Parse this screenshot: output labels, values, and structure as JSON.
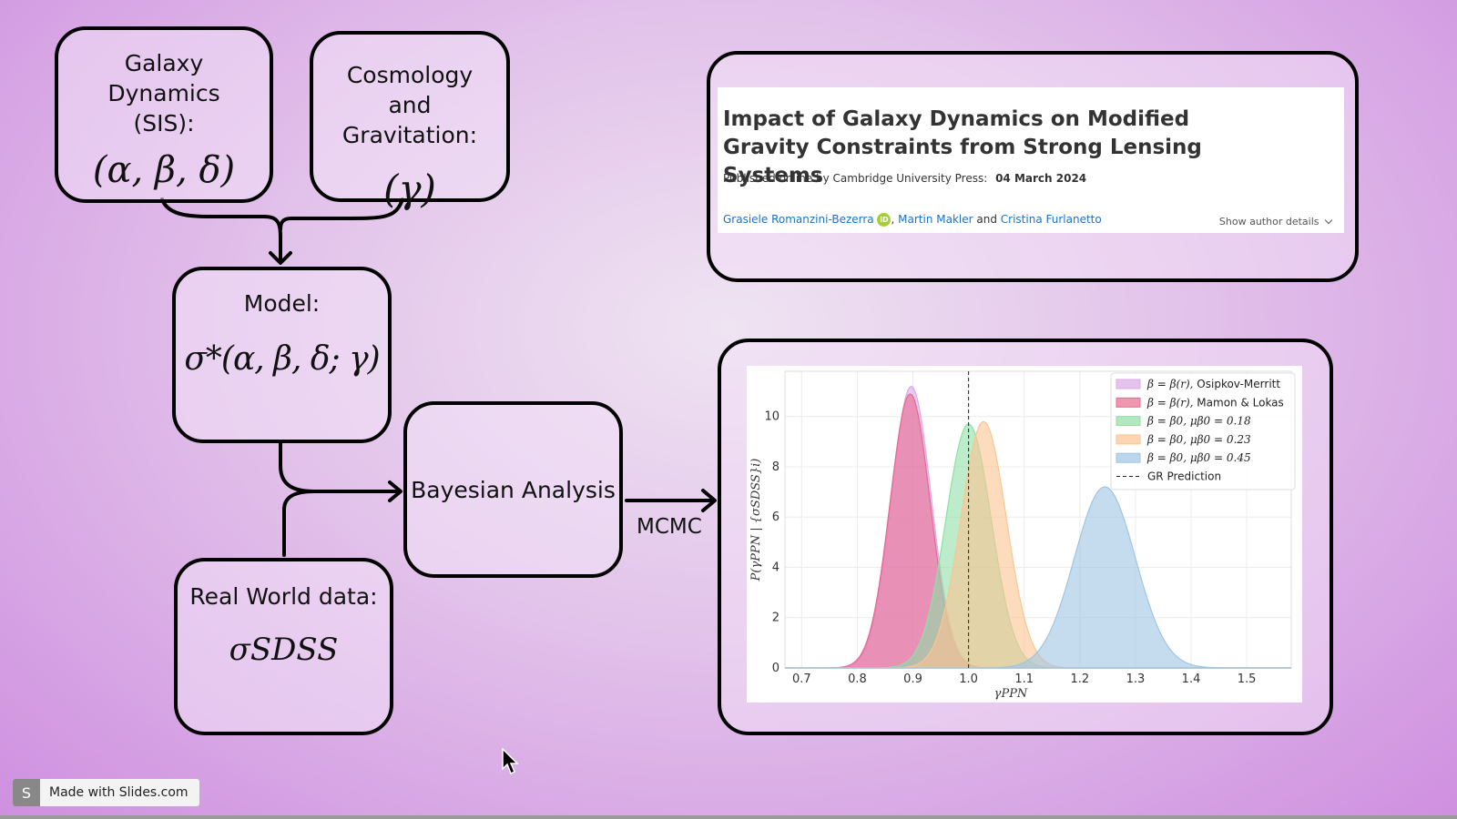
{
  "flow": {
    "galaxy": {
      "label": "Galaxy Dynamics (SIS):",
      "math": "(α, β, δ)"
    },
    "cosmology": {
      "label": "Cosmology and Gravitation:",
      "math": "(γ)"
    },
    "model": {
      "label": "Model:",
      "math": "σ*(α, β, δ; γ)"
    },
    "realworld": {
      "label": "Real World data:",
      "math": "σSDSS"
    },
    "bayes": {
      "label": "Bayesian Analysis"
    },
    "mcmc_label": "MCMC"
  },
  "paper": {
    "title": "Impact of Galaxy Dynamics on Modified Gravity Constraints from Strong Lensing Systems",
    "published_prefix": "Published online by Cambridge University Press:",
    "published_date": "04 March 2024",
    "author1": "Grasiele Romanzini-Bezerra",
    "orcid": "iD",
    "author2": "Martin Makler",
    "and": "and",
    "author3": "Cristina Furlanetto",
    "show_details": "Show author details"
  },
  "footer": {
    "logo": "S",
    "text": "Made with Slides.com"
  },
  "chart_data": {
    "type": "area",
    "xlabel": "γPPN",
    "ylabel": "P(γPPN | {σSDSS}i)",
    "xlim": [
      0.67,
      1.58
    ],
    "ylim": [
      0,
      11.8
    ],
    "xticks": [
      0.7,
      0.8,
      0.9,
      1.0,
      1.1,
      1.2,
      1.3,
      1.4,
      1.5
    ],
    "yticks": [
      0,
      2,
      4,
      6,
      8,
      10
    ],
    "grid": true,
    "legend_position": "top-right",
    "reference_line": {
      "name": "GR Prediction",
      "x": 1.0,
      "style": "dashed"
    },
    "series": [
      {
        "name": "β = β(r), Osipkov-Merritt",
        "mean": 0.897,
        "sigma": 0.036,
        "peak": 11.2,
        "color": "#dba9e8"
      },
      {
        "name": "β = β(r), Mamon & Lokas",
        "mean": 0.895,
        "sigma": 0.036,
        "peak": 10.9,
        "color": "#e8698f"
      },
      {
        "name": "β = β0, μβ0 = 0.18",
        "mean": 1.0,
        "sigma": 0.041,
        "peak": 9.7,
        "color": "#8fe0a5"
      },
      {
        "name": "β = β0, μβ0 = 0.23",
        "mean": 1.027,
        "sigma": 0.041,
        "peak": 9.8,
        "color": "#fbc592"
      },
      {
        "name": "β = β0, μβ0 = 0.45",
        "mean": 1.245,
        "sigma": 0.055,
        "peak": 7.2,
        "color": "#9ec5e4"
      }
    ],
    "legend_entries": [
      {
        "math": "β = β(r),",
        "text": " Osipkov-Merritt"
      },
      {
        "math": "β = β(r),",
        "text": " Mamon & Lokas"
      },
      {
        "math": "β = β0, μβ0 = 0.18",
        "text": ""
      },
      {
        "math": "β = β0, μβ0 = 0.23",
        "text": ""
      },
      {
        "math": "β = β0, μβ0 = 0.45",
        "text": ""
      },
      {
        "math": "",
        "text": "GR Prediction"
      }
    ]
  }
}
